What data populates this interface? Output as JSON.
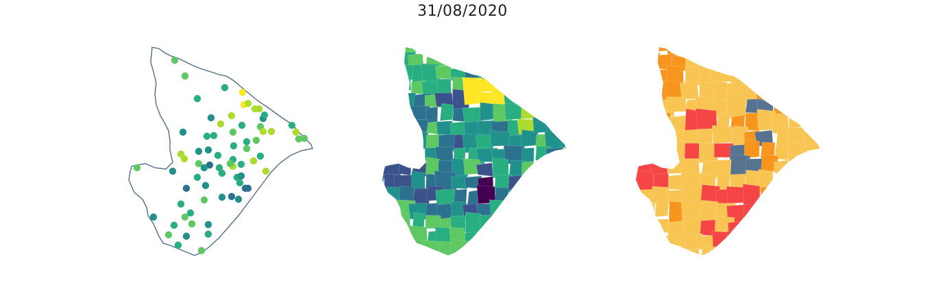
{
  "title": "31/08/2020",
  "colors": {
    "outline": "#4e6d8c",
    "viridis": [
      "#440154",
      "#3b528b",
      "#2c728e",
      "#21918c",
      "#28ae80",
      "#5ec962",
      "#addc30",
      "#fde725"
    ],
    "categorical": {
      "light": "#f9c552",
      "orange": "#f7951e",
      "red": "#f54545",
      "slate": "#58738f"
    }
  }
}
